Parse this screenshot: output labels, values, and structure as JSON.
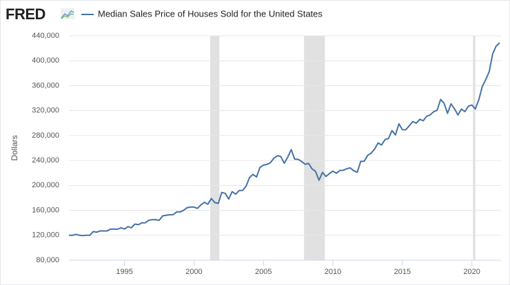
{
  "chart_data": {
    "type": "line",
    "brand": "FRED",
    "title": "Median Sales Price of Houses Sold for the United States",
    "y_label": "Dollars",
    "x": [
      1991,
      1991.25,
      1991.5,
      1991.75,
      1992,
      1992.25,
      1992.5,
      1992.75,
      1993,
      1993.25,
      1993.5,
      1993.75,
      1994,
      1994.25,
      1994.5,
      1994.75,
      1995,
      1995.25,
      1995.5,
      1995.75,
      1996,
      1996.25,
      1996.5,
      1996.75,
      1997,
      1997.25,
      1997.5,
      1997.75,
      1998,
      1998.25,
      1998.5,
      1998.75,
      1999,
      1999.25,
      1999.5,
      1999.75,
      2000,
      2000.25,
      2000.5,
      2000.75,
      2001,
      2001.25,
      2001.5,
      2001.75,
      2002,
      2002.25,
      2002.5,
      2002.75,
      2003,
      2003.25,
      2003.5,
      2003.75,
      2004,
      2004.25,
      2004.5,
      2004.75,
      2005,
      2005.25,
      2005.5,
      2005.75,
      2006,
      2006.25,
      2006.5,
      2006.75,
      2007,
      2007.25,
      2007.5,
      2007.75,
      2008,
      2008.25,
      2008.5,
      2008.75,
      2009,
      2009.25,
      2009.5,
      2009.75,
      2010,
      2010.25,
      2010.5,
      2010.75,
      2011,
      2011.25,
      2011.5,
      2011.75,
      2012,
      2012.25,
      2012.5,
      2012.75,
      2013,
      2013.25,
      2013.5,
      2013.75,
      2014,
      2014.25,
      2014.5,
      2014.75,
      2015,
      2015.25,
      2015.5,
      2015.75,
      2016,
      2016.25,
      2016.5,
      2016.75,
      2017,
      2017.25,
      2017.5,
      2017.75,
      2018,
      2018.25,
      2018.5,
      2018.75,
      2019,
      2019.25,
      2019.5,
      2019.75,
      2020,
      2020.25,
      2020.5,
      2020.75,
      2021,
      2021.25,
      2021.5,
      2021.75,
      2022
    ],
    "series": [
      {
        "name": "Median Sales Price of Houses Sold for the United States",
        "color": "#4572a7",
        "values": [
          120000,
          119900,
          121500,
          120000,
          119500,
          120000,
          120000,
          126000,
          125000,
          127000,
          127000,
          127000,
          130000,
          130000,
          129700,
          132000,
          130000,
          133900,
          132000,
          138000,
          137000,
          139900,
          140000,
          144100,
          145000,
          145000,
          144000,
          151200,
          152000,
          152900,
          153000,
          157400,
          157400,
          160000,
          164200,
          165300,
          165300,
          163200,
          168800,
          172900,
          169800,
          179000,
          172500,
          171100,
          188700,
          187200,
          178100,
          190100,
          186000,
          191800,
          191900,
          198800,
          212700,
          217600,
          213500,
          228800,
          232500,
          233700,
          236400,
          243600,
          247700,
          246300,
          235600,
          245400,
          257400,
          242200,
          241800,
          238400,
          233900,
          235300,
          226500,
          222500,
          208400,
          220900,
          214300,
          219000,
          222900,
          219500,
          224100,
          224300,
          226900,
          228100,
          223500,
          221100,
          238400,
          238700,
          248200,
          251700,
          258400,
          268100,
          264800,
          273600,
          275200,
          288000,
          281000,
          298900,
          289200,
          289400,
          295800,
          302500,
          299800,
          306000,
          303800,
          310900,
          313100,
          318200,
          320500,
          337900,
          331800,
          315600,
          330900,
          322800,
          313000,
          322500,
          318400,
          327100,
          329000,
          322600,
          337500,
          358700,
          369800,
          382600,
          411200,
          423600,
          428700
        ]
      }
    ],
    "recessions": [
      [
        2001.17,
        2001.83
      ],
      [
        2007.92,
        2009.42
      ],
      [
        2020.08,
        2020.25
      ]
    ],
    "recession_color": "#e1e1e1",
    "xlim": [
      1991,
      2022.1
    ],
    "xticks": [
      1995,
      2000,
      2005,
      2010,
      2015,
      2020
    ],
    "ylim": [
      80000,
      440000
    ],
    "yticks": [
      {
        "value": 80000,
        "label": "80,000"
      },
      {
        "value": 120000,
        "label": "120,000"
      },
      {
        "value": 160000,
        "label": "160,000"
      },
      {
        "value": 200000,
        "label": "200,000"
      },
      {
        "value": 240000,
        "label": "240,000"
      },
      {
        "value": 280000,
        "label": "280,000"
      },
      {
        "value": 320000,
        "label": "320,000"
      },
      {
        "value": 360000,
        "label": "360,000"
      },
      {
        "value": 400000,
        "label": "400,000"
      },
      {
        "value": 440000,
        "label": "440,000"
      }
    ],
    "grid": true
  }
}
